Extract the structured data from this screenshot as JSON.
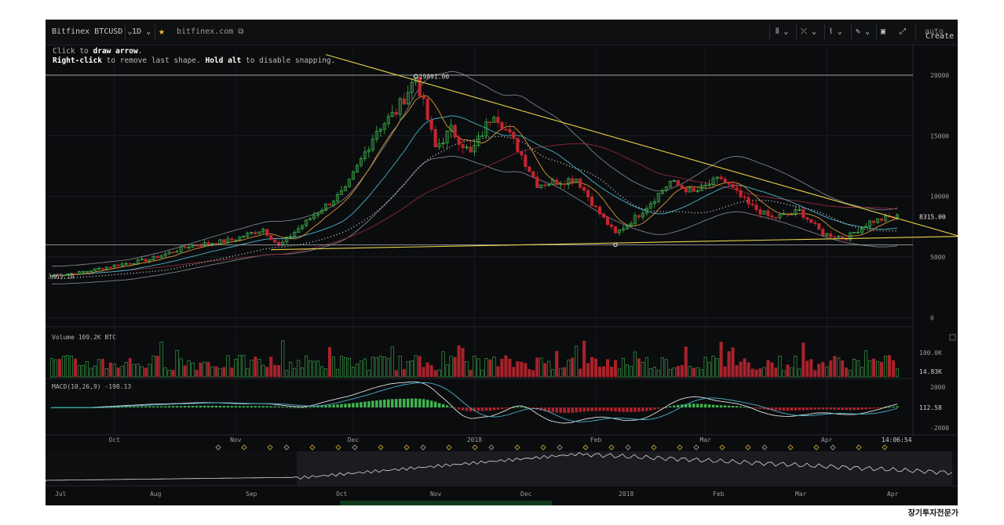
{
  "toolbar": {
    "symbol": "Bitfinex BTCUSD",
    "interval": "1D",
    "star_icon": "star-icon",
    "domain": "bitfinex.com",
    "right_tools": [
      "bar-style-icon",
      "indicators-icon",
      "compare-icon",
      "draw-icon",
      "save-icon",
      "fullscreen-icon"
    ],
    "create_alert": "Create A",
    "auto": "auto"
  },
  "hint": {
    "line1_pre": "Click",
    "line1_mid": " to ",
    "line1_bold": "draw arrow",
    "line1_end": ".",
    "line2_bold1": "Right-click",
    "line2_mid": " to remove last shape. ",
    "line2_bold2": "Hold alt",
    "line2_end": " to disable snapping."
  },
  "chart_data": {
    "type": "candlestick",
    "price_axis": {
      "ticks": [
        20000,
        15000,
        10000,
        5000,
        0
      ],
      "ylim": [
        -500,
        22000
      ]
    },
    "last_price_label": "8315.00",
    "start_price_label": "3465.10",
    "high_marker_label": "19891.00",
    "horizontal_levels": [
      20000,
      6000
    ],
    "triangle": {
      "descending_from": {
        "date": "2017-11-24",
        "price": 21700
      },
      "descending_to": {
        "date": "2018-05-05",
        "price": 6700
      },
      "ascending_from": {
        "date": "2017-11-10",
        "price": 5600
      },
      "ascending_to": {
        "date": "2018-05-05",
        "price": 6700
      }
    },
    "date_axis": [
      "Oct",
      "Nov",
      "Dec",
      "2018",
      "Feb",
      "Mar",
      "Apr"
    ],
    "crosshair_time": "14:06:54",
    "price_path": [
      [
        "2017-09-15",
        3465
      ],
      [
        "2017-09-22",
        3700
      ],
      [
        "2017-10-01",
        4300
      ],
      [
        "2017-10-10",
        4800
      ],
      [
        "2017-10-20",
        5900
      ],
      [
        "2017-10-31",
        6400
      ],
      [
        "2017-11-08",
        7300
      ],
      [
        "2017-11-12",
        5900
      ],
      [
        "2017-11-20",
        8200
      ],
      [
        "2017-11-29",
        10500
      ],
      [
        "2017-12-07",
        15500
      ],
      [
        "2017-12-12",
        17000
      ],
      [
        "2017-12-17",
        19891
      ],
      [
        "2017-12-22",
        14000
      ],
      [
        "2017-12-26",
        15500
      ],
      [
        "2017-12-31",
        13500
      ],
      [
        "2018-01-06",
        17000
      ],
      [
        "2018-01-12",
        14000
      ],
      [
        "2018-01-17",
        11000
      ],
      [
        "2018-01-22",
        11200
      ],
      [
        "2018-01-27",
        11500
      ],
      [
        "2018-02-01",
        9000
      ],
      [
        "2018-02-06",
        6900
      ],
      [
        "2018-02-12",
        8500
      ],
      [
        "2018-02-20",
        11200
      ],
      [
        "2018-02-26",
        10300
      ],
      [
        "2018-03-05",
        11500
      ],
      [
        "2018-03-12",
        9300
      ],
      [
        "2018-03-18",
        8200
      ],
      [
        "2018-03-25",
        8800
      ],
      [
        "2018-03-31",
        6900
      ],
      [
        "2018-04-06",
        6600
      ],
      [
        "2018-04-12",
        7900
      ],
      [
        "2018-04-18",
        8315
      ]
    ],
    "volume_pane": {
      "label": "Volume",
      "value": "109.2K BTC",
      "ticks": [
        "100.0K"
      ],
      "last_label": "14.83K"
    },
    "macd_pane": {
      "label": "MACD(10,26,9)",
      "value": "-198.13",
      "ticks": [
        "2000",
        "0",
        "-2000"
      ],
      "last_label": "112.58"
    },
    "navigator_axis": [
      "Jul",
      "Aug",
      "Sep",
      "Oct",
      "Nov",
      "Dec",
      "2018",
      "Feb",
      "Mar",
      "Apr"
    ]
  },
  "watermark": "장기투자전문가"
}
